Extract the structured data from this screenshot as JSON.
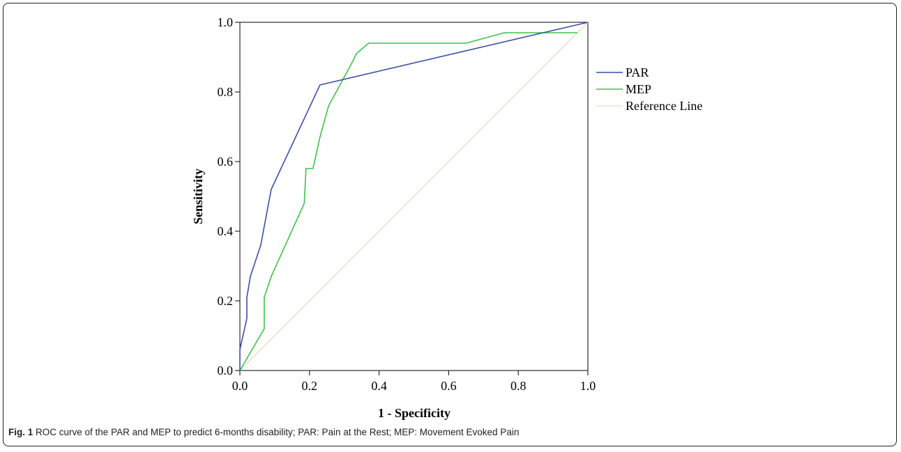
{
  "caption": {
    "label": "Fig. 1",
    "text": "ROC curve of the PAR and MEP to predict 6-months disability; PAR: Pain at the Rest; MEP: Movement Evoked Pain"
  },
  "chart_data": {
    "type": "line",
    "xlabel": "1 - Specificity",
    "ylabel": "Sensitivity",
    "xlim": [
      0,
      1
    ],
    "ylim": [
      0,
      1
    ],
    "xticks": [
      "0.0",
      "0.2",
      "0.4",
      "0.6",
      "0.8",
      "1.0"
    ],
    "yticks": [
      "0.0",
      "0.2",
      "0.4",
      "0.6",
      "0.8",
      "1.0"
    ],
    "grid": false,
    "legend_position": "right",
    "series": [
      {
        "name": "PAR",
        "color": "#3a4fa3",
        "points": [
          [
            0,
            0
          ],
          [
            0,
            0.06
          ],
          [
            0.02,
            0.15
          ],
          [
            0.02,
            0.21
          ],
          [
            0.03,
            0.27
          ],
          [
            0.06,
            0.36
          ],
          [
            0.09,
            0.52
          ],
          [
            0.23,
            0.82
          ],
          [
            1.0,
            1.0
          ]
        ]
      },
      {
        "name": "MEP",
        "color": "#3ec24a",
        "points": [
          [
            0,
            0
          ],
          [
            0.07,
            0.12
          ],
          [
            0.07,
            0.21
          ],
          [
            0.09,
            0.27
          ],
          [
            0.185,
            0.48
          ],
          [
            0.19,
            0.58
          ],
          [
            0.21,
            0.58
          ],
          [
            0.23,
            0.67
          ],
          [
            0.255,
            0.76
          ],
          [
            0.32,
            0.88
          ],
          [
            0.335,
            0.91
          ],
          [
            0.37,
            0.94
          ],
          [
            0.65,
            0.94
          ],
          [
            0.76,
            0.97
          ],
          [
            0.97,
            0.97
          ]
        ]
      },
      {
        "name": "Reference Line",
        "color": "#ede4c8",
        "points": [
          [
            0,
            0
          ],
          [
            1,
            1
          ]
        ]
      }
    ]
  }
}
